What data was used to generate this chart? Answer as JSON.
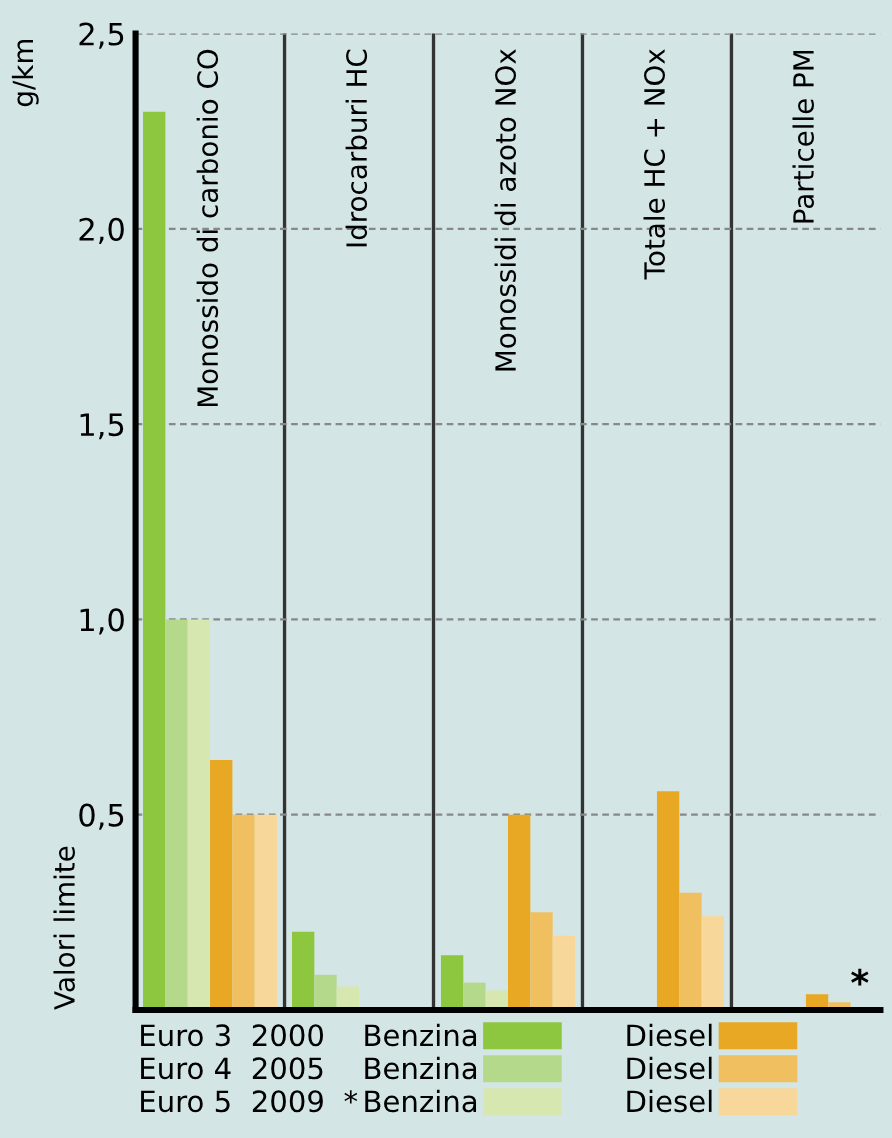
{
  "chart_data": {
    "type": "bar",
    "ylabel": "g/km",
    "categories": [
      "Monossido di carbonio CO",
      "Idrocarburi HC",
      "Monossidi di azoto NOx",
      "Totale HC + NOx",
      "Particelle PM"
    ],
    "series": [
      {
        "name": "Benzina",
        "color": "#8dc63f",
        "values": [
          2.3,
          0.2,
          0.14,
          null,
          null
        ]
      },
      {
        "name": "Benzina",
        "color": "#b5d98a",
        "values": [
          1.0,
          0.09,
          0.07,
          null,
          null
        ]
      },
      {
        "name": "Benzina",
        "color": "#d6e8b0",
        "values": [
          1.0,
          0.06,
          0.05,
          null,
          null
        ]
      },
      {
        "name": "Diesel",
        "color": "#e8a823",
        "values": [
          0.64,
          null,
          0.5,
          0.56,
          0.04
        ]
      },
      {
        "name": "Diesel",
        "color": "#f0c060",
        "values": [
          0.5,
          null,
          0.25,
          0.3,
          0.02
        ]
      },
      {
        "name": "Diesel",
        "color": "#f7d89a",
        "values": [
          0.5,
          null,
          0.19,
          0.24,
          null
        ]
      }
    ],
    "ylim": [
      0,
      2.5
    ],
    "yticks": [
      {
        "value": 0.5,
        "label": "0,5"
      },
      {
        "value": 1.0,
        "label": "1,0"
      },
      {
        "value": 1.5,
        "label": "1,5"
      },
      {
        "value": 2.0,
        "label": "2,0"
      },
      {
        "value": 2.5,
        "label": "2,5"
      }
    ],
    "grid": "y",
    "legend": "bottom",
    "annotations": [
      "Valori limite",
      "Euro 3  2000",
      "Euro 4  2005",
      "Euro 5  2009  *",
      "*"
    ]
  }
}
